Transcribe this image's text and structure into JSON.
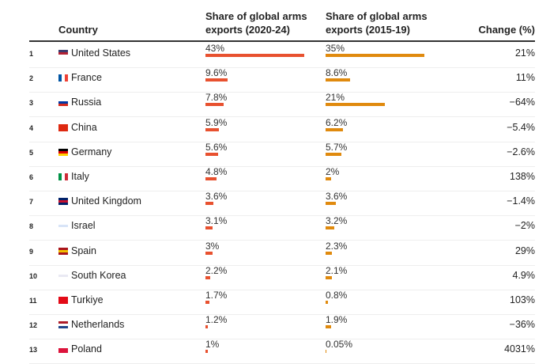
{
  "chart_data": {
    "type": "table",
    "columns": [
      "",
      "Country",
      "Share of global arms exports (2020-24)",
      "Share of global arms exports (2015-19)",
      "Change (%)"
    ],
    "rows": [
      {
        "rank": "1",
        "country": "United States",
        "s2024": 43,
        "s2024_label": "43%",
        "s2019": 35,
        "s2019_label": "35%",
        "change": "21%",
        "flag": [
          "#3c3b6e",
          "#b22234",
          "#fff"
        ]
      },
      {
        "rank": "2",
        "country": "France",
        "s2024": 9.6,
        "s2024_label": "9.6%",
        "s2019": 8.6,
        "s2019_label": "8.6%",
        "change": "11%",
        "flag": [
          "#0055a4",
          "#fff",
          "#ef4135"
        ]
      },
      {
        "rank": "3",
        "country": "Russia",
        "s2024": 7.8,
        "s2024_label": "7.8%",
        "s2019": 21,
        "s2019_label": "21%",
        "change": "−64%",
        "flag": [
          "#fff",
          "#0039a6",
          "#d52b1e"
        ]
      },
      {
        "rank": "4",
        "country": "China",
        "s2024": 5.9,
        "s2024_label": "5.9%",
        "s2019": 6.2,
        "s2019_label": "6.2%",
        "change": "−5.4%",
        "flag": [
          "#de2910",
          "#de2910",
          "#de2910"
        ]
      },
      {
        "rank": "5",
        "country": "Germany",
        "s2024": 5.6,
        "s2024_label": "5.6%",
        "s2019": 5.7,
        "s2019_label": "5.7%",
        "change": "−2.6%",
        "flag": [
          "#000",
          "#dd0000",
          "#ffce00"
        ]
      },
      {
        "rank": "6",
        "country": "Italy",
        "s2024": 4.8,
        "s2024_label": "4.8%",
        "s2019": 2,
        "s2019_label": "2%",
        "change": "138%",
        "flag": [
          "#009246",
          "#fff",
          "#ce2b37"
        ]
      },
      {
        "rank": "7",
        "country": "United Kingdom",
        "s2024": 3.6,
        "s2024_label": "3.6%",
        "s2019": 3.6,
        "s2019_label": "3.6%",
        "change": "−1.4%",
        "flag": [
          "#012169",
          "#c8102e",
          "#012169"
        ]
      },
      {
        "rank": "8",
        "country": "Israel",
        "s2024": 3.1,
        "s2024_label": "3.1%",
        "s2019": 3.2,
        "s2019_label": "3.2%",
        "change": "−2%",
        "flag": [
          "#fff",
          "#d8e4f7",
          "#fff"
        ]
      },
      {
        "rank": "9",
        "country": "Spain",
        "s2024": 3,
        "s2024_label": "3%",
        "s2019": 2.3,
        "s2019_label": "2.3%",
        "change": "29%",
        "flag": [
          "#aa151b",
          "#f1bf00",
          "#aa151b"
        ]
      },
      {
        "rank": "10",
        "country": "South Korea",
        "s2024": 2.2,
        "s2024_label": "2.2%",
        "s2019": 2.1,
        "s2019_label": "2.1%",
        "change": "4.9%",
        "flag": [
          "#fff",
          "#e9e9f3",
          "#fff"
        ]
      },
      {
        "rank": "11",
        "country": "Turkiye",
        "s2024": 1.7,
        "s2024_label": "1.7%",
        "s2019": 0.8,
        "s2019_label": "0.8%",
        "change": "103%",
        "flag": [
          "#e30a17",
          "#e30a17",
          "#e30a17"
        ]
      },
      {
        "rank": "12",
        "country": "Netherlands",
        "s2024": 1.2,
        "s2024_label": "1.2%",
        "s2019": 1.9,
        "s2019_label": "1.9%",
        "change": "−36%",
        "flag": [
          "#ae1c28",
          "#fff",
          "#21468b"
        ]
      },
      {
        "rank": "13",
        "country": "Poland",
        "s2024": 1,
        "s2024_label": "1%",
        "s2019": 0.05,
        "s2019_label": "0.05%",
        "change": "4031%",
        "flag": [
          "#fff",
          "#dc143c",
          "#dc143c"
        ]
      }
    ]
  },
  "header": {
    "country": "Country",
    "col1": "Share of global arms exports (2020-24)",
    "col2": "Share of global arms exports (2015-19)",
    "change": "Change (%)"
  }
}
